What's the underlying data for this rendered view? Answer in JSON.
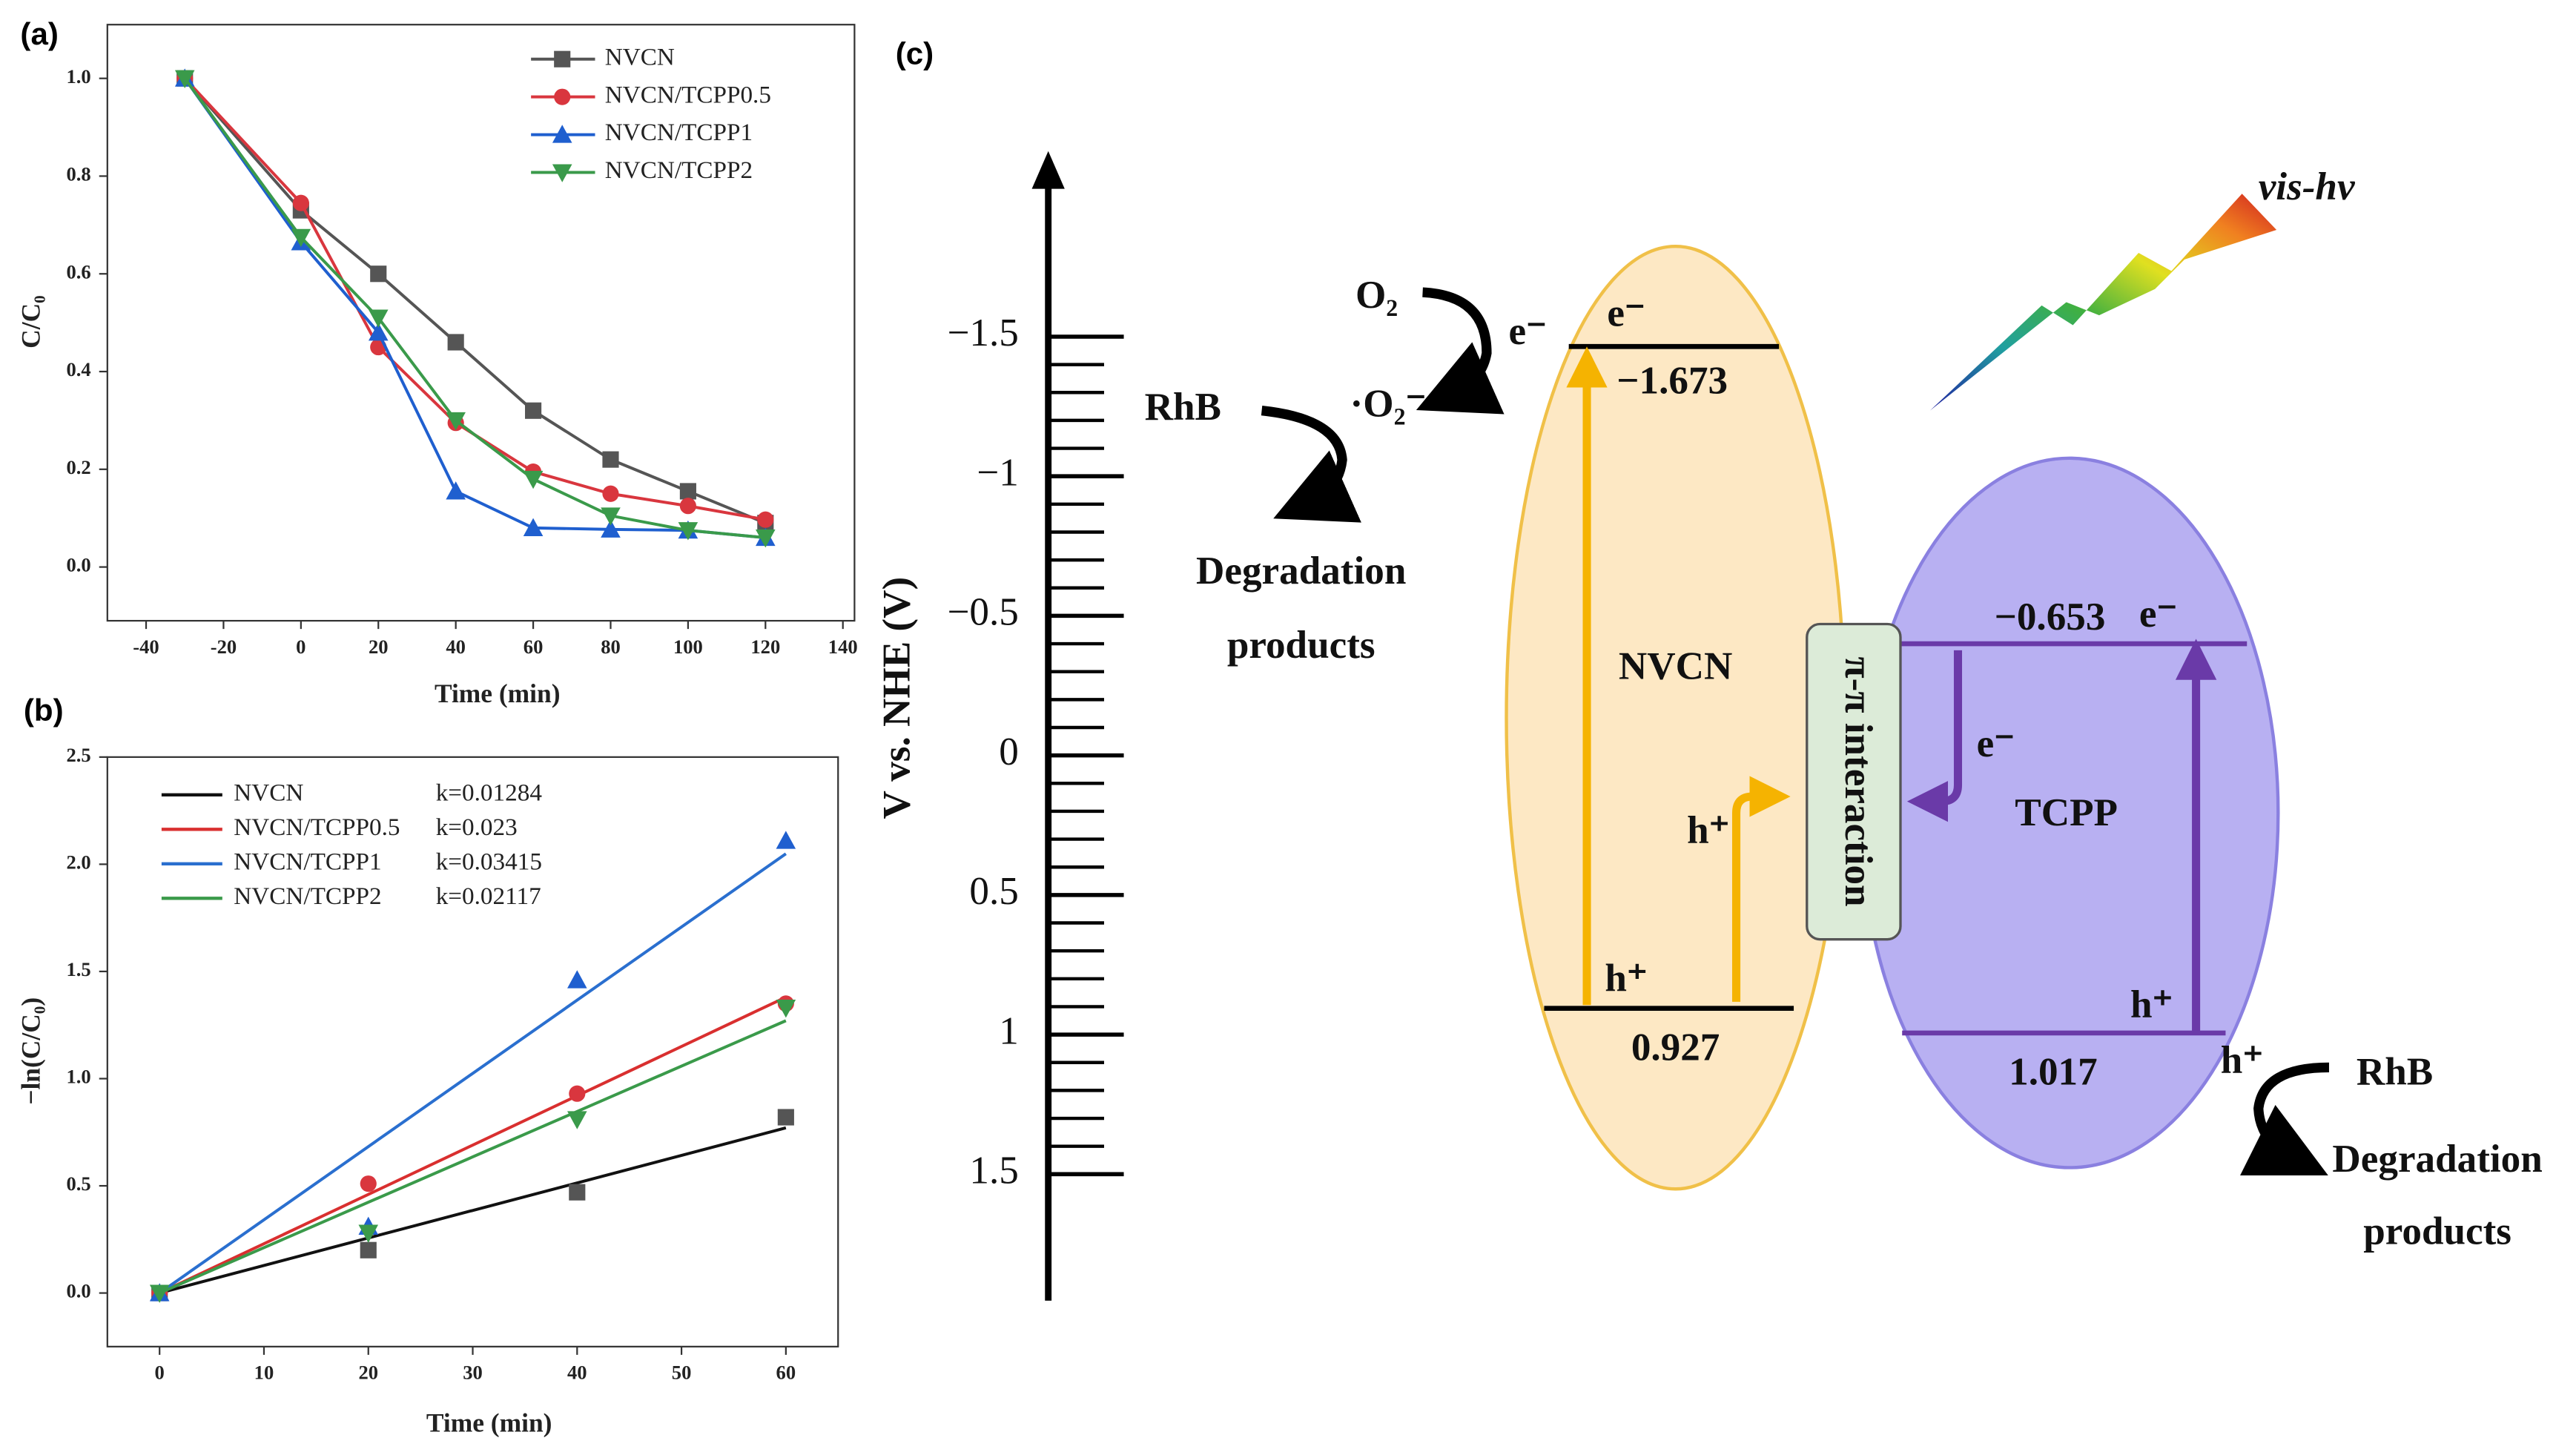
{
  "chart_data": [
    {
      "type": "line",
      "panel": "(a)",
      "xlabel": "Time (min)",
      "ylabel": "C/C₀",
      "x": [
        -30,
        0,
        20,
        40,
        60,
        80,
        100,
        120
      ],
      "series": [
        {
          "name": "NVCN",
          "color": "#555555",
          "marker": "square",
          "values": [
            1.0,
            0.73,
            0.6,
            0.46,
            0.32,
            0.22,
            0.155,
            0.09
          ]
        },
        {
          "name": "NVCN/TCPP0.5",
          "color": "#d9363e",
          "marker": "circle",
          "values": [
            1.0,
            0.745,
            0.45,
            0.295,
            0.195,
            0.15,
            0.125,
            0.097
          ]
        },
        {
          "name": "NVCN/TCPP1",
          "color": "#1f5fcf",
          "marker": "triangle-up",
          "values": [
            1.0,
            0.665,
            0.48,
            0.155,
            0.08,
            0.077,
            0.075,
            0.06
          ]
        },
        {
          "name": "NVCN/TCPP2",
          "color": "#3a9a4a",
          "marker": "triangle-down",
          "values": [
            1.0,
            0.675,
            0.51,
            0.3,
            0.18,
            0.105,
            0.075,
            0.06
          ]
        }
      ],
      "xlim": [
        -50,
        143
      ],
      "xticks": [
        -40,
        -20,
        0,
        20,
        40,
        60,
        80,
        100,
        120,
        140
      ],
      "ylim": [
        -0.11,
        1.11
      ],
      "yticks": [
        {
          "value": 0,
          "label": "0.0"
        },
        {
          "value": 0.2,
          "label": "0.2"
        },
        {
          "value": 0.4,
          "label": "0.4"
        },
        {
          "value": 0.6,
          "label": "0.6"
        },
        {
          "value": 0.8,
          "label": "0.8"
        },
        {
          "value": 1.0,
          "label": "1.0"
        }
      ],
      "legend": "upper right"
    },
    {
      "type": "scatter",
      "panel": "(b)",
      "xlabel": "Time (min)",
      "ylabel": "−ln(C/C₀)",
      "x": [
        0,
        20,
        40,
        60
      ],
      "series": [
        {
          "name": "NVCN",
          "color": "#555555",
          "line_color": "#111111",
          "marker": "square",
          "values": [
            0,
            0.2,
            0.47,
            0.82
          ],
          "k": 0.01284,
          "fit_label": "k=0.01284"
        },
        {
          "name": "NVCN/TCPP0.5",
          "color": "#d9363e",
          "line_color": "#d92f2f",
          "marker": "circle",
          "values": [
            0,
            0.51,
            0.93,
            1.35
          ],
          "k": 0.023,
          "fit_label": "k=0.023"
        },
        {
          "name": "NVCN/TCPP1",
          "color": "#1f5fcf",
          "line_color": "#2a6fcf",
          "marker": "triangle-up",
          "values": [
            0,
            0.31,
            1.46,
            2.11
          ],
          "k": 0.03415,
          "fit_label": "k=0.03415"
        },
        {
          "name": "NVCN/TCPP2",
          "color": "#3a9a4a",
          "line_color": "#3a9a4a",
          "marker": "triangle-down",
          "values": [
            0,
            0.28,
            0.81,
            1.33
          ],
          "k": 0.02117,
          "fit_label": "k=0.02117"
        }
      ],
      "xlim": [
        -5,
        65
      ],
      "xticks": [
        0,
        10,
        20,
        30,
        40,
        50,
        60
      ],
      "ylim": [
        -0.25,
        2.5
      ],
      "yticks": [
        {
          "value": 0,
          "label": "0.0"
        },
        {
          "value": 0.5,
          "label": "0.5"
        },
        {
          "value": 1.0,
          "label": "1.0"
        },
        {
          "value": 1.5,
          "label": "1.5"
        },
        {
          "value": 2.0,
          "label": "2.0"
        },
        {
          "value": 2.5,
          "label": "2.5"
        }
      ],
      "legend": "upper left"
    }
  ],
  "diagram": {
    "panel": "(c)",
    "axis_label": "V vs. NHE (V)",
    "ticks": [
      {
        "value": -1.5,
        "label": "−1.5"
      },
      {
        "value": -1,
        "label": "−1"
      },
      {
        "value": -0.5,
        "label": "−0.5"
      },
      {
        "value": 0,
        "label": "0"
      },
      {
        "value": 0.5,
        "label": "0.5"
      },
      {
        "value": 1,
        "label": "1"
      },
      {
        "value": 1.5,
        "label": "1.5"
      }
    ],
    "light": "vis-hv",
    "left": {
      "o2": "O₂",
      "electron": "e⁻",
      "superoxide": "·O₂⁻",
      "rhb": "RhB",
      "products_1": "Degradation",
      "products_2": "products"
    },
    "nvcn": {
      "name": "NVCN",
      "cb_electron": "e⁻",
      "cb": "−1.673",
      "vb": "0.927",
      "vb_hole": "h⁺",
      "transfer_hole": "h⁺"
    },
    "interaction": "π-π interaction",
    "tcpp": {
      "name": "TCPP",
      "cb": "−0.653",
      "cb_electron": "e⁻",
      "transfer_electron": "e⁻",
      "vb_hole": "h⁺",
      "vb": "1.017"
    },
    "right": {
      "hole": "h⁺",
      "rhb": "RhB",
      "products_1": "Degradation",
      "products_2": "products"
    }
  }
}
